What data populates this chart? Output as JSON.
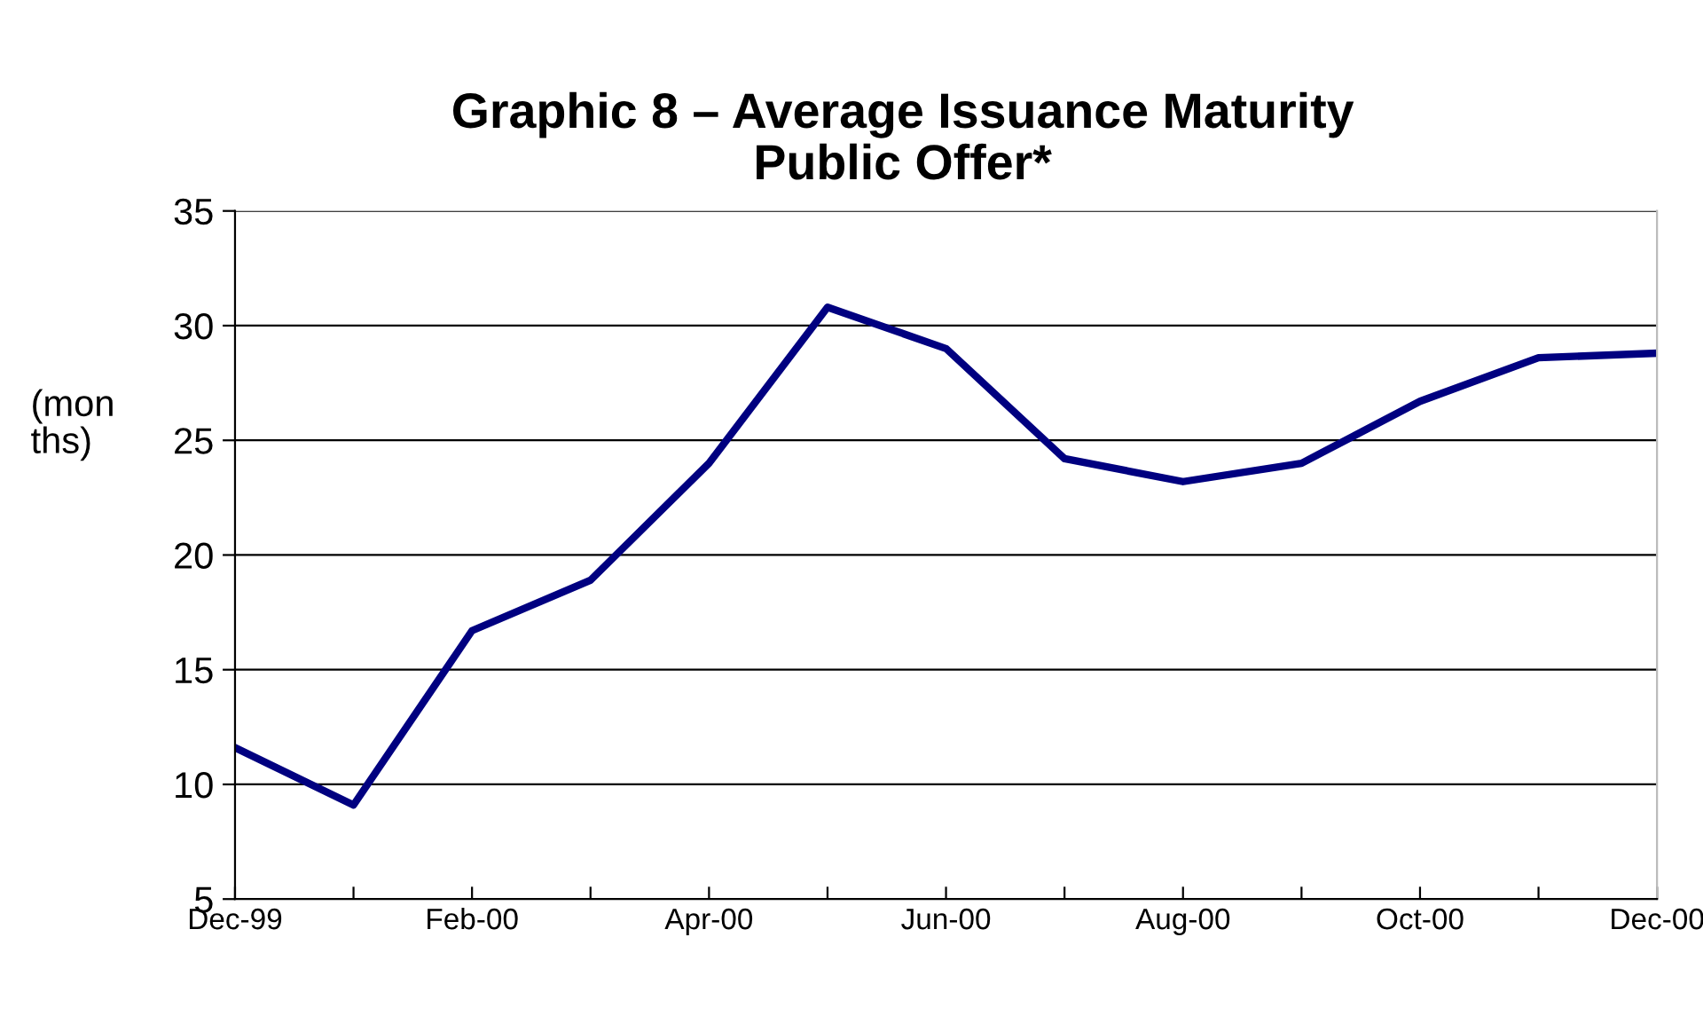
{
  "chart_data": {
    "type": "line",
    "title": "Graphic 8 – Average Issuance Maturity\nPublic Offer*",
    "ylabel": "(mon\nths)",
    "categories": [
      "Dec-99",
      null,
      "Feb-00",
      null,
      "Apr-00",
      null,
      "Jun-00",
      null,
      "Aug-00",
      null,
      "Oct-00",
      null,
      "Dec-00"
    ],
    "series": [
      {
        "color": "#000080",
        "values": [
          11.6,
          9.1,
          16.7,
          18.9,
          24.0,
          30.8,
          29.0,
          24.2,
          23.2,
          24.0,
          26.7,
          28.6,
          28.8
        ]
      }
    ],
    "ylim": [
      5,
      35
    ],
    "yticks": [
      5,
      10,
      15,
      20,
      25,
      30,
      35
    ],
    "grid": "y",
    "marker": "none",
    "line_style": "solid"
  }
}
